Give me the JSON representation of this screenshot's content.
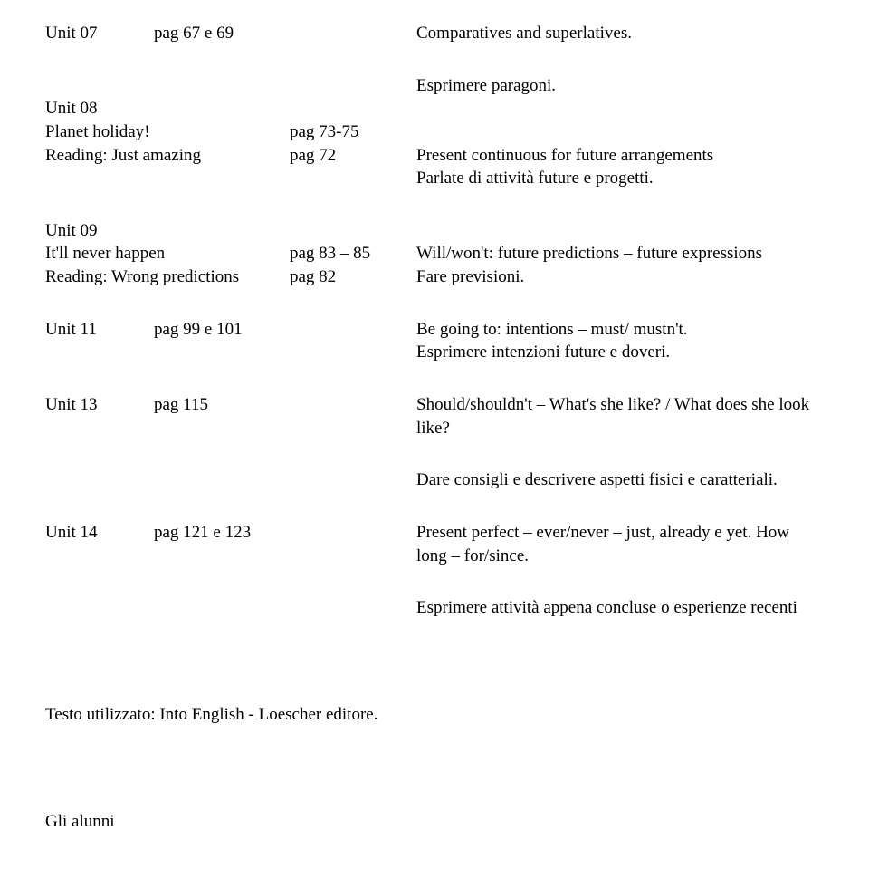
{
  "u07": {
    "label": "Unit 07",
    "page": "pag 67 e 69",
    "grammar": "Comparatives and superlatives.",
    "func": "Esprimere paragoni."
  },
  "u08": {
    "label": "Unit 08",
    "title": "Planet holiday!",
    "title_page": "pag 73-75",
    "reading": "Reading: Just amazing",
    "reading_page": "pag 72",
    "grammar": "Present continuous for future arrangements",
    "func": "Parlate di attività future e progetti."
  },
  "u09": {
    "label": "Unit 09",
    "title": "It'll never happen",
    "title_page": "pag 83 – 85",
    "reading": "Reading: Wrong predictions",
    "reading_page": "pag 82",
    "grammar": "Will/won't: future predictions – future expressions",
    "func": "Fare previsioni."
  },
  "u11": {
    "label": "Unit 11",
    "page": "pag 99 e 101",
    "grammar": "Be going to: intentions – must/ mustn't.",
    "func": "Esprimere intenzioni future e doveri."
  },
  "u13": {
    "label": "Unit 13",
    "page": "pag 115",
    "grammar": "Should/shouldn't – What's she like? / What does she look like?",
    "func": "Dare consigli e descrivere aspetti fisici e caratteriali."
  },
  "u14": {
    "label": "Unit 14",
    "page": "pag 121 e 123",
    "grammar": "Present perfect – ever/never – just, already e yet. How long – for/since.",
    "func": "Esprimere attività appena concluse o esperienze recenti"
  },
  "textbook": "Testo utilizzato: Into English  -  Loescher editore.",
  "students": "Gli alunni"
}
